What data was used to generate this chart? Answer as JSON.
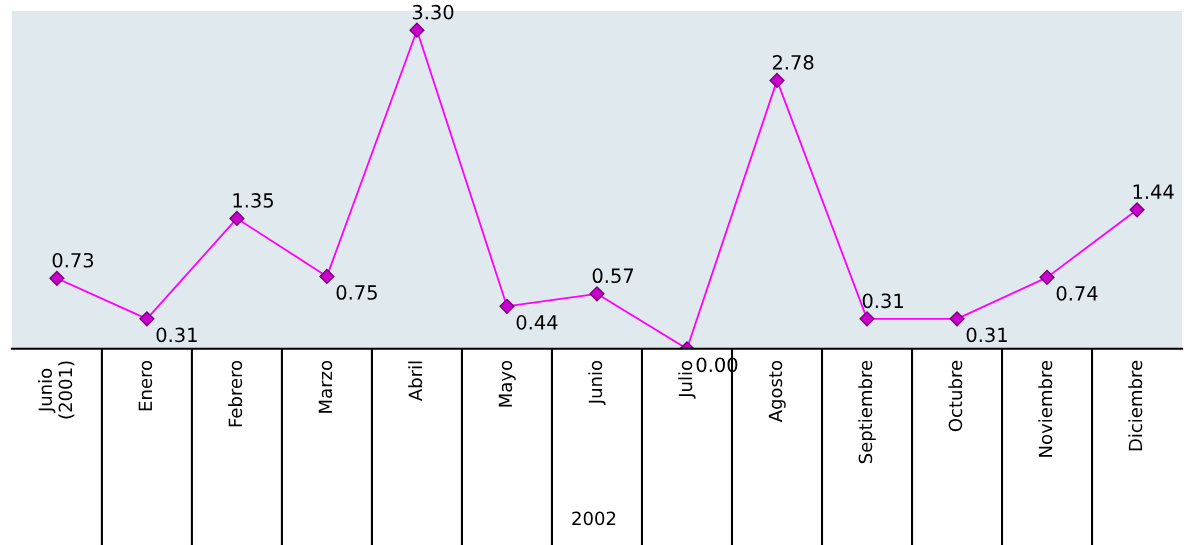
{
  "chart_data": {
    "type": "line",
    "categories": [
      "Junio\n(2001)",
      "Enero",
      "Febrero",
      "Marzo",
      "Abril",
      "Mayo",
      "Junio",
      "Julio",
      "Agosto",
      "Septiembre",
      "Octubre",
      "Noviembre",
      "Diciembre"
    ],
    "series": [
      {
        "color": "#ff00ff",
        "values": [
          0.73,
          0.31,
          1.35,
          0.75,
          3.3,
          0.44,
          0.57,
          0.0,
          2.78,
          0.31,
          0.31,
          0.74,
          1.44
        ],
        "value_labels": [
          "0.73",
          "0.31",
          "1.35",
          "0.75",
          "3.30",
          "0.44",
          "0.57",
          "0.00",
          "2.78",
          "0.31",
          "0.31",
          "0.74",
          "1.44"
        ]
      }
    ],
    "ylim": [
      0,
      3.5
    ],
    "tick_labels": "x",
    "marker": "diamond",
    "line_style": "solid",
    "grid": false,
    "legend": false,
    "annotations": [
      "2002"
    ]
  }
}
